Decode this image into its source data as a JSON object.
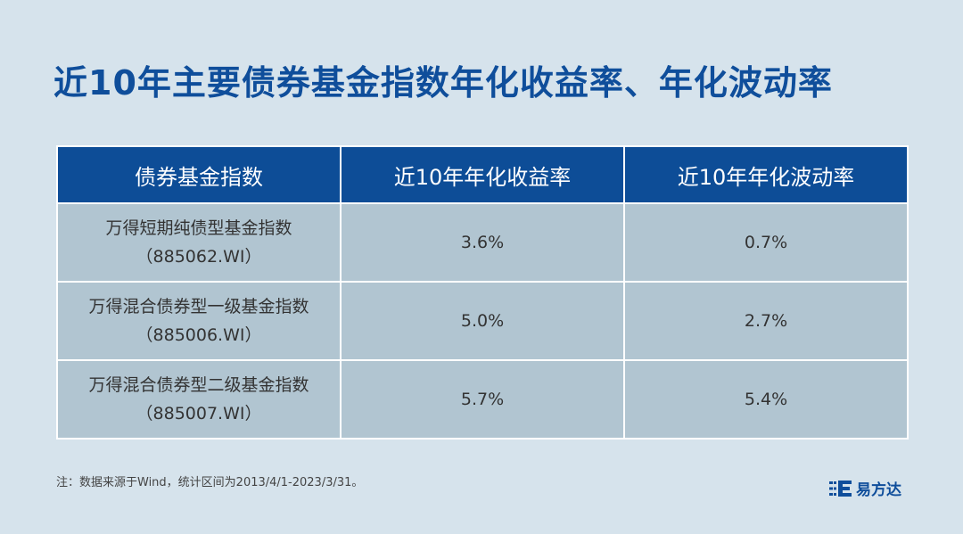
{
  "title": "近10年主要债券基金指数年化收益率、年化波动率",
  "table": {
    "headers": [
      "债券基金指数",
      "近10年年化收益率",
      "近10年年化波动率"
    ],
    "rows": [
      {
        "name": "万得短期纯债型基金指数",
        "code": "（885062.WI）",
        "return": "3.6%",
        "volatility": "0.7%"
      },
      {
        "name": "万得混合债券型一级基金指数",
        "code": "（885006.WI）",
        "return": "5.0%",
        "volatility": "2.7%"
      },
      {
        "name": "万得混合债券型二级基金指数",
        "code": "（885007.WI）",
        "return": "5.7%",
        "volatility": "5.4%"
      }
    ]
  },
  "note": "注：数据来源于Wind，统计区间为2013/4/1-2023/3/31。",
  "logo": {
    "text": "易方达",
    "color": "#0f4e9b"
  }
}
